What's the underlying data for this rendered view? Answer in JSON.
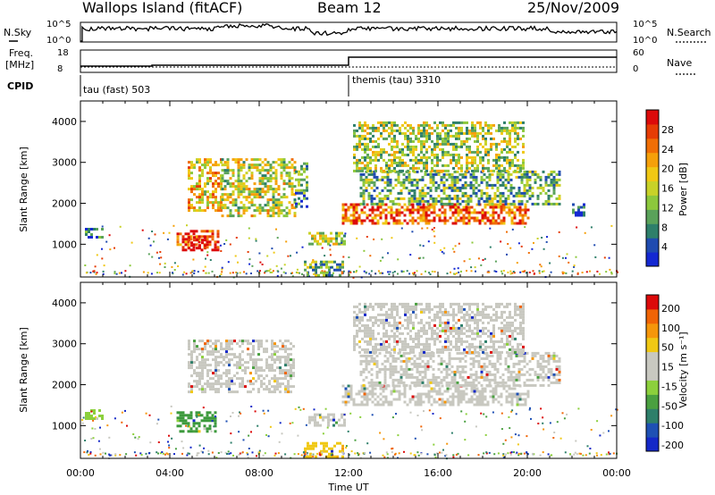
{
  "header": {
    "site": "Wallops Island (fitACF)",
    "beam": "Beam 12",
    "date": "25/Nov/2009"
  },
  "sky_panel": {
    "left_label": "N.Sky",
    "left_ticks": [
      "10^5",
      "10^0"
    ],
    "right_label": "N.Search",
    "right_ticks": [
      "10^5",
      "10^0"
    ]
  },
  "freq_panel": {
    "left_label_1": "Freq.",
    "left_label_2": "[MHz]",
    "left_ticks": [
      "18",
      "8"
    ],
    "right_label": "Nave",
    "right_ticks": [
      "60",
      "0"
    ]
  },
  "cpid": {
    "label": "CPID",
    "mode_1": "tau (fast) 503",
    "mode_2": "themis (tau) 3310"
  },
  "chart_data": [
    {
      "type": "heatmap",
      "name": "power-panel",
      "ylabel": "Slant Range [km]",
      "yticks": [
        1000,
        2000,
        3000,
        4000
      ],
      "ylim": [
        200,
        4500
      ],
      "xlim_hours": [
        0,
        24
      ],
      "colorbar_label": "Power [dB]",
      "colorbar_ticks": [
        4,
        8,
        12,
        16,
        20,
        24,
        28
      ],
      "colorbar_colors": [
        "#1428d2",
        "#1f4bb0",
        "#2e7f6a",
        "#5aa25a",
        "#8cc83c",
        "#c8d228",
        "#f0c814",
        "#f5a00a",
        "#f06e05",
        "#e63c05",
        "#dc0a0a"
      ],
      "regions": [
        {
          "t0": 0.2,
          "t1": 1.0,
          "r0": 1150,
          "r1": 1400,
          "level": 0.15
        },
        {
          "t0": 4.3,
          "t1": 6.2,
          "r0": 850,
          "r1": 1350,
          "level": 0.85
        },
        {
          "t0": 4.8,
          "t1": 5.6,
          "r0": 900,
          "r1": 1200,
          "level": 1.0
        },
        {
          "t0": 4.8,
          "t1": 6.3,
          "r0": 1800,
          "r1": 3100,
          "level": 0.6
        },
        {
          "t0": 6.3,
          "t1": 9.6,
          "r0": 1700,
          "r1": 3100,
          "level": 0.5
        },
        {
          "t0": 9.6,
          "t1": 10.2,
          "r0": 1900,
          "r1": 3000,
          "level": 0.3
        },
        {
          "t0": 10.2,
          "t1": 11.8,
          "r0": 1000,
          "r1": 1300,
          "level": 0.45
        },
        {
          "t0": 10.0,
          "t1": 11.8,
          "r0": 250,
          "r1": 600,
          "level": 0.35
        },
        {
          "t0": 11.7,
          "t1": 20.0,
          "r0": 1500,
          "r1": 2000,
          "level": 0.8
        },
        {
          "t0": 12.5,
          "t1": 21.5,
          "r0": 2000,
          "r1": 2800,
          "level": 0.35
        },
        {
          "t0": 12.2,
          "t1": 19.8,
          "r0": 2800,
          "r1": 4000,
          "level": 0.45
        },
        {
          "t0": 22.0,
          "t1": 22.5,
          "r0": 1700,
          "r1": 2000,
          "level": 0.15
        }
      ]
    },
    {
      "type": "heatmap",
      "name": "velocity-panel",
      "ylabel": "Slant Range [km]",
      "yticks": [
        1000,
        2000,
        3000,
        4000
      ],
      "ylim": [
        200,
        4500
      ],
      "xlim_hours": [
        0,
        24
      ],
      "xticks": [
        "00:00",
        "04:00",
        "08:00",
        "12:00",
        "16:00",
        "20:00",
        "00:00"
      ],
      "xlabel": "Time UT",
      "colorbar_label": "Velocity [m s-1]",
      "colorbar_ticks": [
        "200",
        "100",
        "50",
        "15",
        "-15",
        "-50",
        "-100",
        "-200"
      ],
      "colorbar_colors": [
        "#1428c8",
        "#1e50b4",
        "#2e7f6a",
        "#4aa040",
        "#8cd03c",
        "#c8c8c0",
        "#c8c8c0",
        "#f0c814",
        "#f5960a",
        "#f06405",
        "#dc0a0a"
      ],
      "regions": [
        {
          "t0": 0.2,
          "t1": 1.0,
          "r0": 1150,
          "r1": 1400,
          "color": "#8cd03c"
        },
        {
          "t0": 4.3,
          "t1": 6.0,
          "r0": 850,
          "r1": 1350,
          "color": "#3c9a3c"
        },
        {
          "t0": 4.8,
          "t1": 9.6,
          "r0": 1800,
          "r1": 3100,
          "color": "#c8c8c0"
        },
        {
          "t0": 10.2,
          "t1": 11.8,
          "r0": 1000,
          "r1": 1300,
          "color": "#c8c8c0"
        },
        {
          "t0": 11.7,
          "t1": 20.0,
          "r0": 1500,
          "r1": 2000,
          "color": "#c8c8c0"
        },
        {
          "t0": 12.5,
          "t1": 21.5,
          "r0": 2000,
          "r1": 2800,
          "color": "#c8c8c0"
        },
        {
          "t0": 12.2,
          "t1": 19.8,
          "r0": 2800,
          "r1": 4000,
          "color": "#c8c8c0"
        },
        {
          "t0": 10.0,
          "t1": 11.8,
          "r0": 250,
          "r1": 600,
          "color": "#f0c814"
        }
      ]
    }
  ],
  "colorbar_labels": {
    "power": "Power [dB]",
    "velocity": "Velocity [m s⁻¹]"
  }
}
